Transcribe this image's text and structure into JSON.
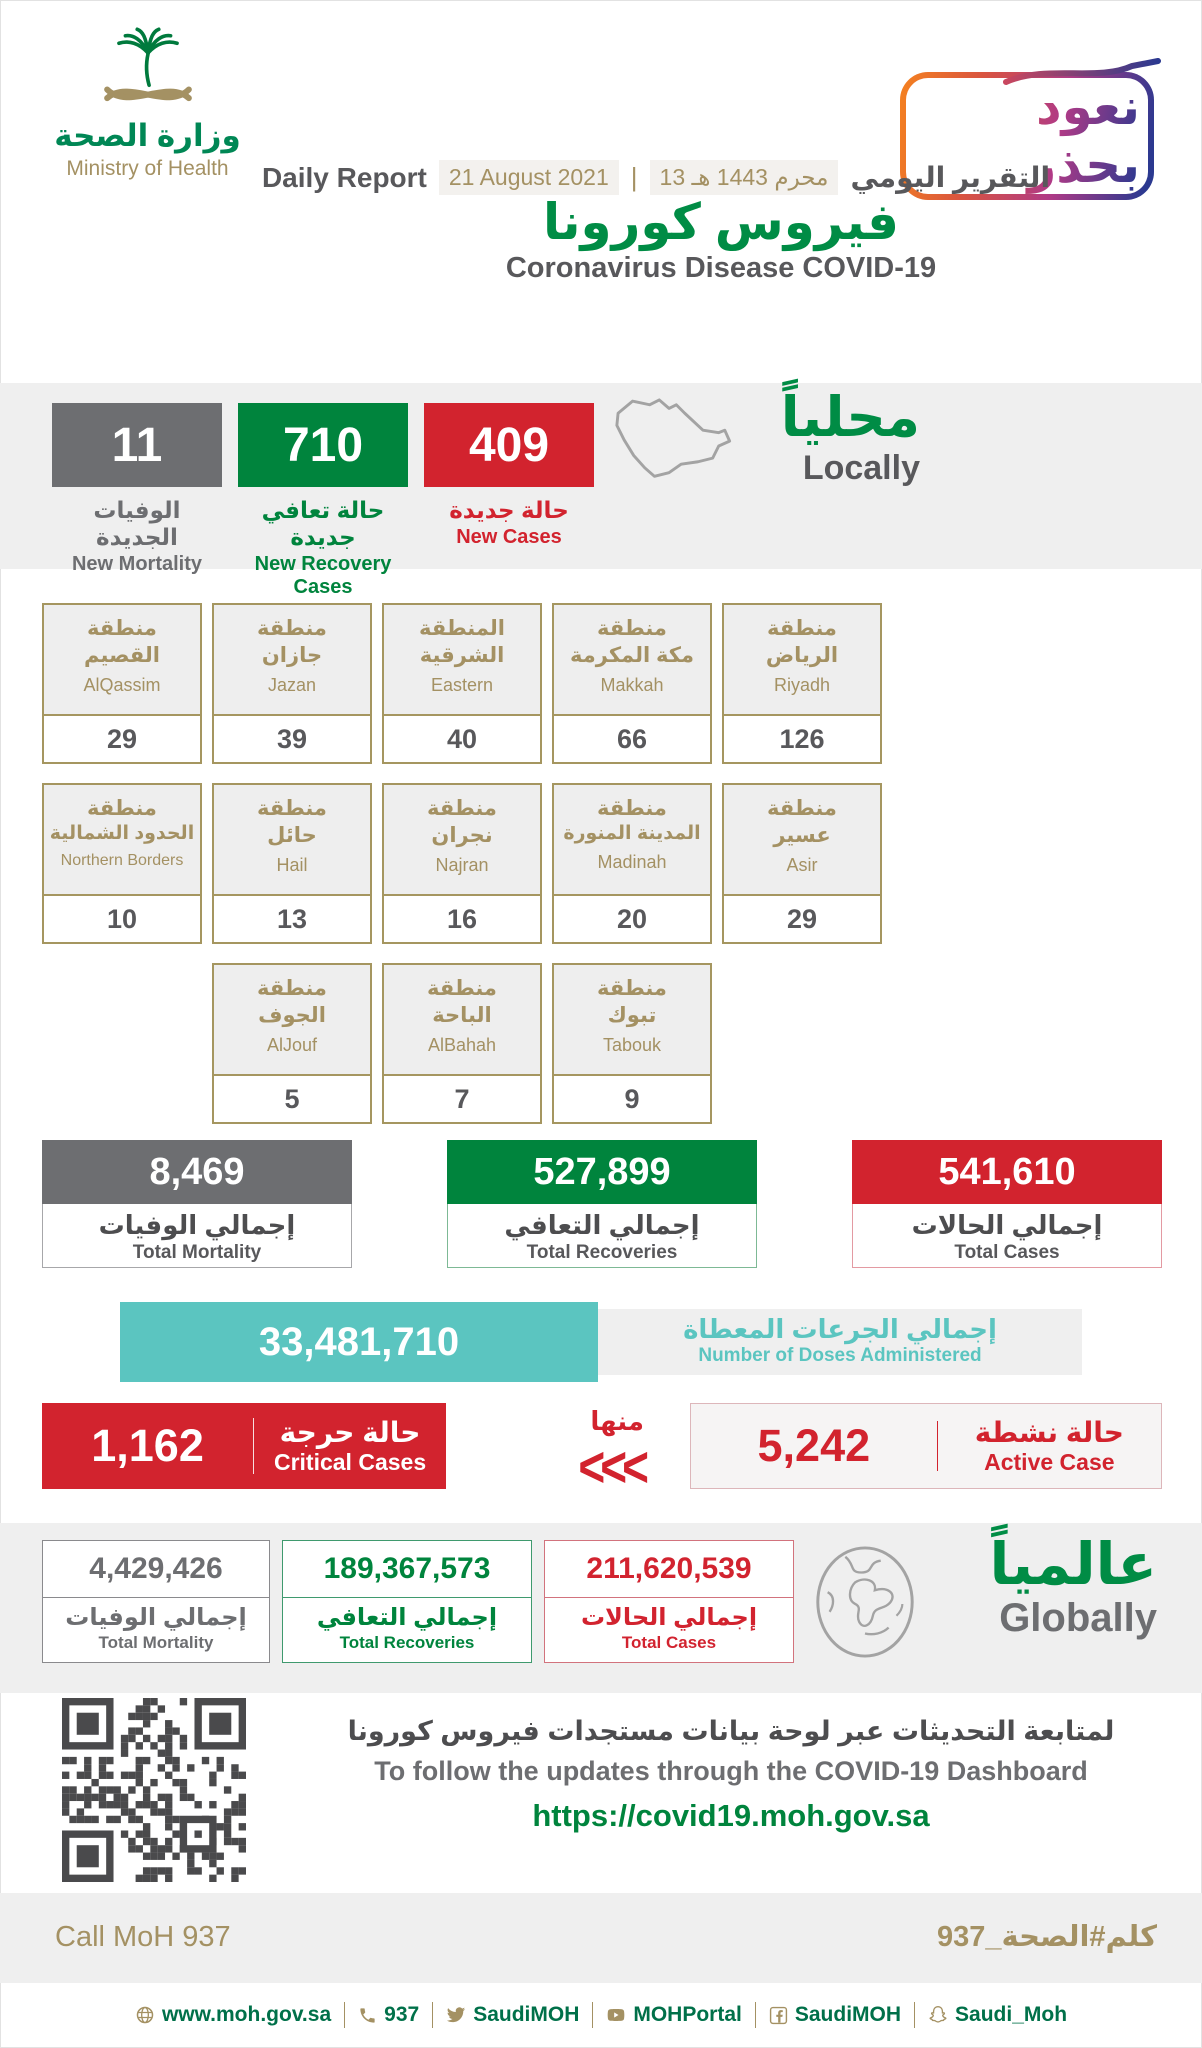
{
  "colors": {
    "brand_green": "#008c45",
    "box_green": "#00843d",
    "gray": "#6d6e71",
    "red": "#d2232e",
    "tan": "#a49163",
    "teal": "#5bc5c0",
    "band": "#efefef"
  },
  "header": {
    "logo_ar": "وزارة الصحة",
    "logo_en": "Ministry of Health",
    "badge": "نعود بحذر",
    "report_en": "Daily Report",
    "report_date_en": "21 August 2021",
    "separator": "|",
    "report_date_hijri": "13 محرم 1443 هـ",
    "report_ar": "التقرير اليومي",
    "title_ar": "فيروس كورونا",
    "title_en": "Coronavirus Disease COVID-19"
  },
  "locally": {
    "heading_ar": "محلياً",
    "heading_en": "Locally",
    "stats": [
      {
        "value": "11",
        "label_ar": "الوفيات الجديدة",
        "label_en": "New Mortality",
        "color": "#6d6e71"
      },
      {
        "value": "710",
        "label_ar": "حالة تعافي جديدة",
        "label_en": "New Recovery Cases",
        "color": "#00843d"
      },
      {
        "value": "409",
        "label_ar": "حالة جديدة",
        "label_en": "New Cases",
        "color": "#d2232e"
      }
    ]
  },
  "regions": {
    "rows": [
      [
        {
          "ar1": "منطقة",
          "ar2": "القصيم",
          "en": "AlQassim",
          "value": "29"
        },
        {
          "ar1": "منطقة",
          "ar2": "جازان",
          "en": "Jazan",
          "value": "39"
        },
        {
          "ar1": "المنطقة",
          "ar2": "الشرقية",
          "en": "Eastern",
          "value": "40"
        },
        {
          "ar1": "منطقة",
          "ar2": "مكة المكرمة",
          "en": "Makkah",
          "value": "66"
        },
        {
          "ar1": "منطقة",
          "ar2": "الرياض",
          "en": "Riyadh",
          "value": "126"
        }
      ],
      [
        {
          "ar1": "منطقة",
          "ar2": "الحدود الشمالية",
          "en": "Northern Borders",
          "value": "10"
        },
        {
          "ar1": "منطقة",
          "ar2": "حائل",
          "en": "Hail",
          "value": "13"
        },
        {
          "ar1": "منطقة",
          "ar2": "نجران",
          "en": "Najran",
          "value": "16"
        },
        {
          "ar1": "منطقة",
          "ar2": "المدينة المنورة",
          "en": "Madinah",
          "value": "20"
        },
        {
          "ar1": "منطقة",
          "ar2": "عسير",
          "en": "Asir",
          "value": "29"
        }
      ],
      [
        {
          "ar1": "منطقة",
          "ar2": "الجوف",
          "en": "AlJouf",
          "value": "5"
        },
        {
          "ar1": "منطقة",
          "ar2": "الباحة",
          "en": "AlBahah",
          "value": "7"
        },
        {
          "ar1": "منطقة",
          "ar2": "تبوك",
          "en": "Tabouk",
          "value": "9"
        }
      ]
    ]
  },
  "totals": [
    {
      "value": "8,469",
      "label_ar": "إجمالي الوفيات",
      "label_en": "Total Mortality",
      "color": "#6d6e71"
    },
    {
      "value": "527,899",
      "label_ar": "إجمالي التعافي",
      "label_en": "Total Recoveries",
      "color": "#00843d"
    },
    {
      "value": "541,610",
      "label_ar": "إجمالي الحالات",
      "label_en": "Total Cases",
      "color": "#d2232e"
    }
  ],
  "doses": {
    "value": "33,481,710",
    "label_ar": "إجمالي الجرعات المعطاة",
    "label_en": "Number of Doses Administered"
  },
  "critical": {
    "value": "1,162",
    "label_ar": "حالة حرجة",
    "label_en": "Critical Cases"
  },
  "of_which": {
    "label_ar": "منها",
    "arrows": "<<<"
  },
  "active": {
    "value": "5,242",
    "label_ar": "حالة نشطة",
    "label_en": "Active Case"
  },
  "globally": {
    "heading_ar": "عالمياً",
    "heading_en": "Globally",
    "stats": [
      {
        "value": "4,429,426",
        "label_ar": "إجمالي الوفيات",
        "label_en": "Total Mortality",
        "color": "#6d6e71"
      },
      {
        "value": "189,367,573",
        "label_ar": "إجمالي التعافي",
        "label_en": "Total Recoveries",
        "color": "#00843d"
      },
      {
        "value": "211,620,539",
        "label_ar": "إجمالي الحالات",
        "label_en": "Total Cases",
        "color": "#d2232f"
      }
    ]
  },
  "dashboard": {
    "line_ar": "لمتابعة التحديثات عبر لوحة بيانات مستجدات فيروس كورونا",
    "line_en": "To follow the updates through the COVID-19 Dashboard",
    "url": "https://covid19.moh.gov.sa"
  },
  "hashtag_bar": {
    "left": "Call MoH 937",
    "right": "كلم#الصحة_937"
  },
  "footer": {
    "items": [
      {
        "icon": "globe-icon",
        "label": "www.moh.gov.sa"
      },
      {
        "icon": "phone-icon",
        "label": "937"
      },
      {
        "icon": "twitter-icon",
        "label": "SaudiMOH"
      },
      {
        "icon": "youtube-icon",
        "label": "MOHPortal"
      },
      {
        "icon": "facebook-icon",
        "label": "SaudiMOH"
      },
      {
        "icon": "snapchat-icon",
        "label": "Saudi_Moh"
      }
    ]
  }
}
